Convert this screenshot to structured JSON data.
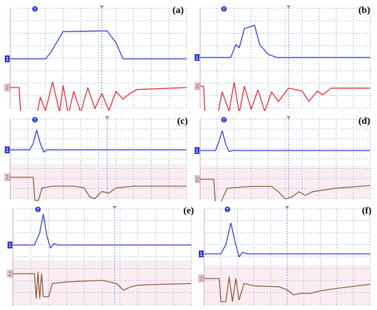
{
  "chart_data": [
    {
      "type": "line",
      "panel_label": "(a)",
      "ch1_marker": "1",
      "ch2_marker": "2",
      "trigger_marker": "T",
      "series": [
        {
          "values": [
            [
              0,
              0
            ],
            [
              2,
              0
            ],
            [
              2.3,
              0.2
            ],
            [
              3,
              0.85
            ],
            [
              5.5,
              0.87
            ],
            [
              6,
              0.5
            ],
            [
              6.4,
              0
            ],
            [
              10,
              0
            ]
          ]
        },
        {
          "values": [
            [
              0,
              0
            ],
            [
              0.5,
              0
            ],
            [
              0.6,
              -1.5
            ],
            [
              1.5,
              -1.5
            ],
            [
              1.7,
              -0.5
            ],
            [
              2,
              -1.2
            ],
            [
              2.4,
              0.3
            ],
            [
              2.8,
              -1.3
            ],
            [
              3,
              0.1
            ],
            [
              3.3,
              -1.4
            ],
            [
              3.6,
              -0.2
            ],
            [
              4,
              -1.3
            ],
            [
              4.4,
              0
            ],
            [
              4.8,
              -1.1
            ],
            [
              5.2,
              -0.3
            ],
            [
              5.6,
              -1.2
            ],
            [
              6,
              -0.2
            ],
            [
              6.4,
              -0.6
            ],
            [
              6.8,
              -0.3
            ],
            [
              7.2,
              -0.1
            ],
            [
              10,
              0
            ]
          ]
        }
      ]
    },
    {
      "type": "line",
      "panel_label": "(b)",
      "ch1_marker": "1",
      "ch2_marker": "2",
      "trigger_marker": "T",
      "series": [
        {
          "values": [
            [
              0,
              0
            ],
            [
              1.8,
              0
            ],
            [
              2.1,
              0.4
            ],
            [
              2.3,
              0.3
            ],
            [
              2.6,
              0.9
            ],
            [
              3.2,
              1.0
            ],
            [
              3.5,
              0.4
            ],
            [
              4,
              0.1
            ],
            [
              4.5,
              0
            ],
            [
              10,
              0
            ]
          ]
        },
        {
          "values": [
            [
              0,
              0
            ],
            [
              0.2,
              0
            ],
            [
              0.3,
              -1.6
            ],
            [
              1,
              -1.6
            ],
            [
              1.3,
              -0.3
            ],
            [
              1.7,
              -1.3
            ],
            [
              2,
              0.2
            ],
            [
              2.3,
              -1.4
            ],
            [
              2.6,
              0
            ],
            [
              3,
              -1.2
            ],
            [
              3.4,
              -0.2
            ],
            [
              3.8,
              -1.3
            ],
            [
              4.2,
              -0.3
            ],
            [
              4.6,
              -0.8
            ],
            [
              5.2,
              -0.1
            ],
            [
              6,
              -0.25
            ],
            [
              6.4,
              -0.8
            ],
            [
              6.9,
              -0.25
            ],
            [
              7.2,
              -0.45
            ],
            [
              7.7,
              -0.1
            ],
            [
              10,
              -0.1
            ]
          ]
        }
      ]
    },
    {
      "type": "line",
      "panel_label": "(c)",
      "ch1_marker": "1",
      "ch2_marker": "2",
      "trigger_marker": "T",
      "series": [
        {
          "values": [
            [
              0,
              0
            ],
            [
              1.1,
              0
            ],
            [
              1.3,
              0.3
            ],
            [
              1.5,
              0.9
            ],
            [
              1.7,
              0.3
            ],
            [
              1.9,
              -0.1
            ],
            [
              2.1,
              0
            ],
            [
              10,
              0
            ]
          ]
        },
        {
          "values": [
            [
              0,
              0
            ],
            [
              0.8,
              0
            ],
            [
              1.3,
              0
            ],
            [
              1.4,
              -1.3
            ],
            [
              1.6,
              -1.3
            ],
            [
              1.8,
              -0.6
            ],
            [
              2.4,
              -0.5
            ],
            [
              3.6,
              -0.5
            ],
            [
              4.2,
              -0.6
            ],
            [
              4.5,
              -1.1
            ],
            [
              4.8,
              -1.2
            ],
            [
              5.2,
              -0.8
            ],
            [
              5.6,
              -0.9
            ],
            [
              6,
              -0.6
            ],
            [
              7,
              -0.5
            ],
            [
              10,
              -0.5
            ]
          ]
        }
      ]
    },
    {
      "type": "line",
      "panel_label": "(d)",
      "ch1_marker": "1",
      "ch2_marker": "2",
      "trigger_marker": "T",
      "series": [
        {
          "values": [
            [
              0,
              0
            ],
            [
              0.9,
              0
            ],
            [
              1.1,
              0.4
            ],
            [
              1.3,
              0.9
            ],
            [
              1.5,
              0.3
            ],
            [
              1.7,
              -0.05
            ],
            [
              1.9,
              0
            ],
            [
              10,
              0
            ]
          ]
        },
        {
          "values": [
            [
              0,
              0
            ],
            [
              0.8,
              0
            ],
            [
              0.9,
              -1.3
            ],
            [
              1.2,
              -1.3
            ],
            [
              1.6,
              -0.5
            ],
            [
              3,
              -0.4
            ],
            [
              4.2,
              -0.4
            ],
            [
              4.6,
              -0.7
            ],
            [
              5,
              -1.1
            ],
            [
              5.4,
              -1.0
            ],
            [
              5.8,
              -0.7
            ],
            [
              6.2,
              -0.9
            ],
            [
              6.6,
              -0.7
            ],
            [
              8,
              -0.5
            ],
            [
              10,
              -0.35
            ]
          ]
        }
      ]
    },
    {
      "type": "line",
      "panel_label": "(e)",
      "ch1_marker": "1",
      "ch2_marker": "2",
      "trigger_marker": "T",
      "series": [
        {
          "values": [
            [
              0,
              0
            ],
            [
              1.2,
              0
            ],
            [
              1.5,
              0.4
            ],
            [
              1.7,
              1.0
            ],
            [
              1.9,
              0.3
            ],
            [
              2.1,
              -0.1
            ],
            [
              2.3,
              0.05
            ],
            [
              2.5,
              0
            ],
            [
              10,
              0
            ]
          ]
        },
        {
          "values": [
            [
              0,
              0
            ],
            [
              1.2,
              0
            ],
            [
              1.3,
              -1.5
            ],
            [
              1.4,
              0.1
            ],
            [
              1.5,
              -1.5
            ],
            [
              1.6,
              0
            ],
            [
              1.7,
              -1.4
            ],
            [
              2,
              -1.4
            ],
            [
              2.2,
              -0.6
            ],
            [
              3,
              -0.5
            ],
            [
              5,
              -0.4
            ],
            [
              5.8,
              -0.6
            ],
            [
              6.2,
              -1.0
            ],
            [
              6.6,
              -0.8
            ],
            [
              7,
              -0.7
            ],
            [
              8,
              -0.65
            ],
            [
              10,
              -0.6
            ]
          ]
        }
      ]
    },
    {
      "type": "line",
      "panel_label": "(f)",
      "ch1_marker": "1",
      "ch2_marker": "2",
      "trigger_marker": "T",
      "series": [
        {
          "values": [
            [
              0,
              0
            ],
            [
              1.0,
              0
            ],
            [
              1.3,
              0.3
            ],
            [
              1.6,
              1.0
            ],
            [
              1.9,
              0.3
            ],
            [
              2.1,
              -0.1
            ],
            [
              2.3,
              0.05
            ],
            [
              2.6,
              0
            ],
            [
              10,
              0
            ]
          ]
        },
        {
          "values": [
            [
              0,
              0
            ],
            [
              0.9,
              0
            ],
            [
              1.0,
              -1.4
            ],
            [
              1.3,
              -1.4
            ],
            [
              1.5,
              0.1
            ],
            [
              1.7,
              -1.4
            ],
            [
              1.9,
              0
            ],
            [
              2.1,
              -1.3
            ],
            [
              2.4,
              -0.3
            ],
            [
              3,
              -0.45
            ],
            [
              4.5,
              -0.5
            ],
            [
              5,
              -0.7
            ],
            [
              5.4,
              -1.0
            ],
            [
              5.8,
              -0.9
            ],
            [
              6.4,
              -0.9
            ],
            [
              7,
              -0.75
            ],
            [
              8,
              -0.6
            ],
            [
              10,
              -0.35
            ]
          ]
        }
      ]
    }
  ],
  "colors": {
    "ch1": "#2a35d8",
    "ch2_ab": "#e0262b",
    "ch2_cf": "#8a5a33",
    "grid": "#7b8fc9",
    "axis_mid": "#6e86d2"
  }
}
